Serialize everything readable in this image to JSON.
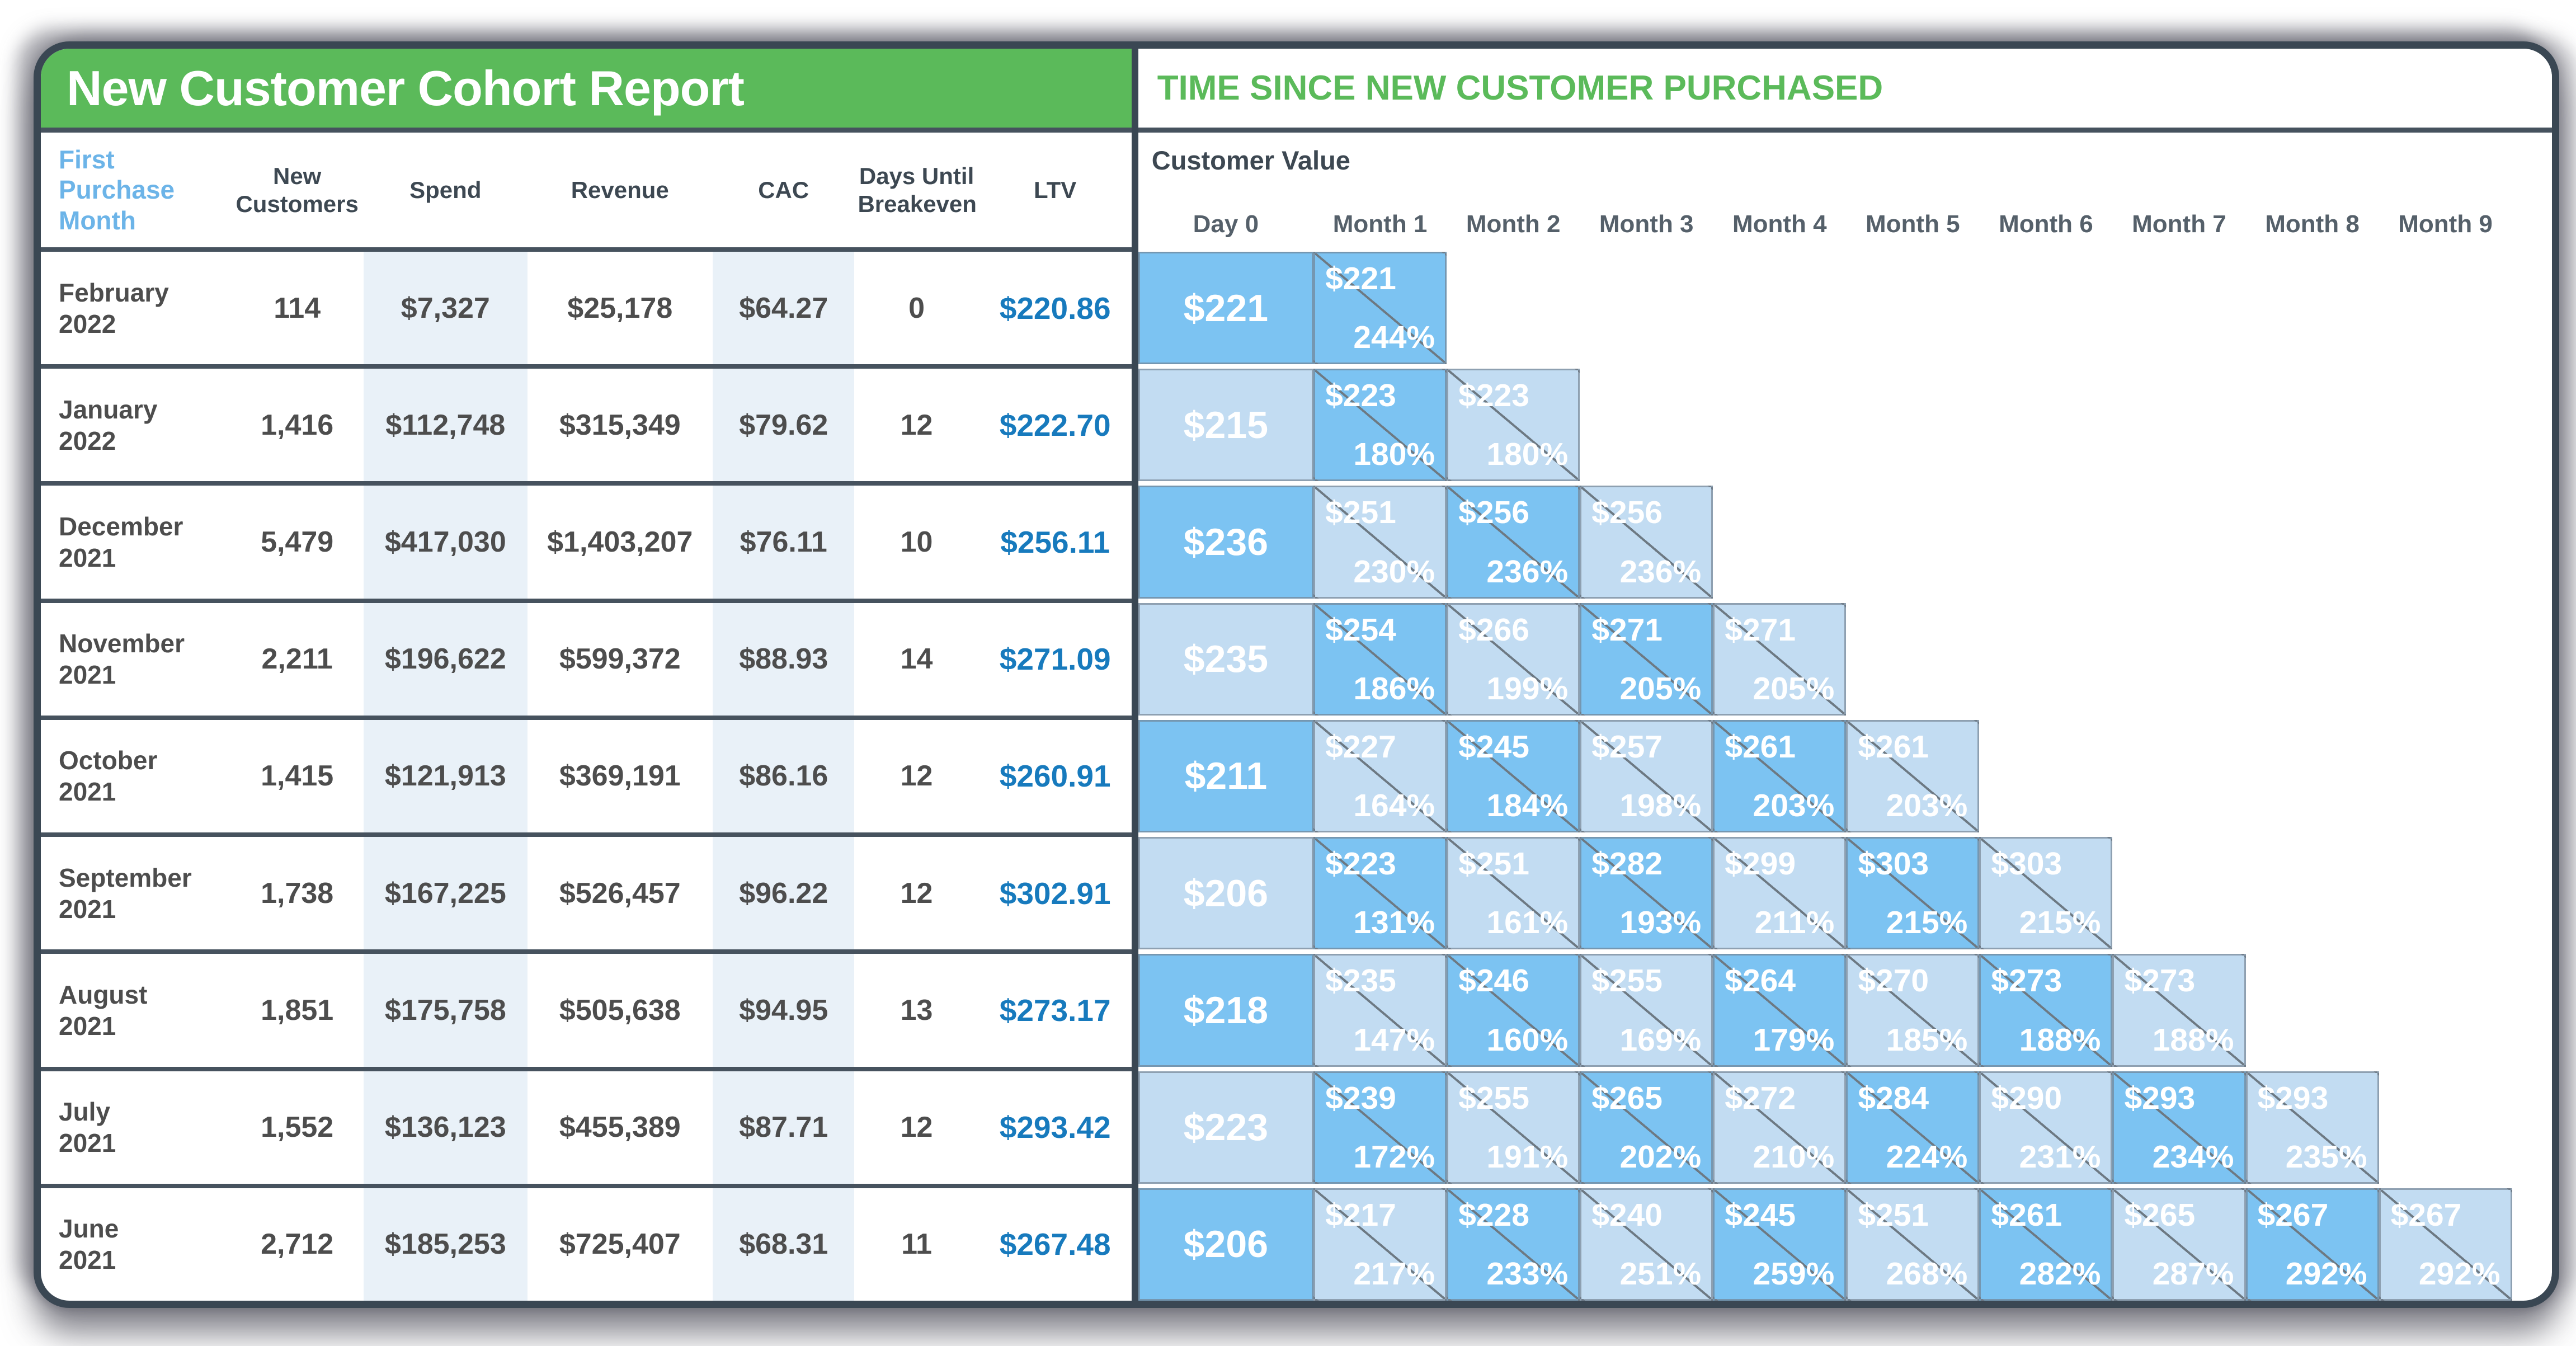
{
  "chart_data": {
    "type": "table",
    "left_table": {
      "title": "New Customer Cohort Report",
      "columns": [
        "First Purchase Month",
        "New Customers",
        "Spend",
        "Revenue",
        "CAC",
        "Days Until Breakeven",
        "LTV"
      ],
      "rows": [
        {
          "month": "February",
          "year": "2022",
          "new_customers": "114",
          "spend": "$7,327",
          "revenue": "$25,178",
          "cac": "$64.27",
          "days": "0",
          "ltv": "$220.86"
        },
        {
          "month": "January",
          "year": "2022",
          "new_customers": "1,416",
          "spend": "$112,748",
          "revenue": "$315,349",
          "cac": "$79.62",
          "days": "12",
          "ltv": "$222.70"
        },
        {
          "month": "December",
          "year": "2021",
          "new_customers": "5,479",
          "spend": "$417,030",
          "revenue": "$1,403,207",
          "cac": "$76.11",
          "days": "10",
          "ltv": "$256.11"
        },
        {
          "month": "November",
          "year": "2021",
          "new_customers": "2,211",
          "spend": "$196,622",
          "revenue": "$599,372",
          "cac": "$88.93",
          "days": "14",
          "ltv": "$271.09"
        },
        {
          "month": "October",
          "year": "2021",
          "new_customers": "1,415",
          "spend": "$121,913",
          "revenue": "$369,191",
          "cac": "$86.16",
          "days": "12",
          "ltv": "$260.91"
        },
        {
          "month": "September",
          "year": "2021",
          "new_customers": "1,738",
          "spend": "$167,225",
          "revenue": "$526,457",
          "cac": "$96.22",
          "days": "12",
          "ltv": "$302.91"
        },
        {
          "month": "August",
          "year": "2021",
          "new_customers": "1,851",
          "spend": "$175,758",
          "revenue": "$505,638",
          "cac": "$94.95",
          "days": "13",
          "ltv": "$273.17"
        },
        {
          "month": "July",
          "year": "2021",
          "new_customers": "1,552",
          "spend": "$136,123",
          "revenue": "$455,389",
          "cac": "$87.71",
          "days": "12",
          "ltv": "$293.42"
        },
        {
          "month": "June",
          "year": "2021",
          "new_customers": "2,712",
          "spend": "$185,253",
          "revenue": "$725,407",
          "cac": "$68.31",
          "days": "11",
          "ltv": "$267.48"
        }
      ]
    },
    "cohort_matrix": {
      "title": "TIME SINCE NEW CUSTOMER PURCHASED",
      "customer_value_label": "Customer Value",
      "columns": [
        "Day 0",
        "Month 1",
        "Month 2",
        "Month 3",
        "Month 4",
        "Month 5",
        "Month 6",
        "Month 7",
        "Month 8",
        "Month 9"
      ],
      "rows": [
        {
          "day0": {
            "value": "$221",
            "shade": "dark"
          },
          "cells": [
            {
              "value": "$221",
              "pct": "244%",
              "shade": "dark"
            }
          ]
        },
        {
          "day0": {
            "value": "$215",
            "shade": "light"
          },
          "cells": [
            {
              "value": "$223",
              "pct": "180%",
              "shade": "dark"
            },
            {
              "value": "$223",
              "pct": "180%",
              "shade": "light"
            }
          ]
        },
        {
          "day0": {
            "value": "$236",
            "shade": "dark"
          },
          "cells": [
            {
              "value": "$251",
              "pct": "230%",
              "shade": "light"
            },
            {
              "value": "$256",
              "pct": "236%",
              "shade": "dark"
            },
            {
              "value": "$256",
              "pct": "236%",
              "shade": "light"
            }
          ]
        },
        {
          "day0": {
            "value": "$235",
            "shade": "light"
          },
          "cells": [
            {
              "value": "$254",
              "pct": "186%",
              "shade": "dark"
            },
            {
              "value": "$266",
              "pct": "199%",
              "shade": "light"
            },
            {
              "value": "$271",
              "pct": "205%",
              "shade": "dark"
            },
            {
              "value": "$271",
              "pct": "205%",
              "shade": "light"
            }
          ]
        },
        {
          "day0": {
            "value": "$211",
            "shade": "dark"
          },
          "cells": [
            {
              "value": "$227",
              "pct": "164%",
              "shade": "light"
            },
            {
              "value": "$245",
              "pct": "184%",
              "shade": "dark"
            },
            {
              "value": "$257",
              "pct": "198%",
              "shade": "light"
            },
            {
              "value": "$261",
              "pct": "203%",
              "shade": "dark"
            },
            {
              "value": "$261",
              "pct": "203%",
              "shade": "light"
            }
          ]
        },
        {
          "day0": {
            "value": "$206",
            "shade": "light"
          },
          "cells": [
            {
              "value": "$223",
              "pct": "131%",
              "shade": "dark"
            },
            {
              "value": "$251",
              "pct": "161%",
              "shade": "light"
            },
            {
              "value": "$282",
              "pct": "193%",
              "shade": "dark"
            },
            {
              "value": "$299",
              "pct": "211%",
              "shade": "light"
            },
            {
              "value": "$303",
              "pct": "215%",
              "shade": "dark"
            },
            {
              "value": "$303",
              "pct": "215%",
              "shade": "light"
            }
          ]
        },
        {
          "day0": {
            "value": "$218",
            "shade": "dark"
          },
          "cells": [
            {
              "value": "$235",
              "pct": "147%",
              "shade": "light"
            },
            {
              "value": "$246",
              "pct": "160%",
              "shade": "dark"
            },
            {
              "value": "$255",
              "pct": "169%",
              "shade": "light"
            },
            {
              "value": "$264",
              "pct": "179%",
              "shade": "dark"
            },
            {
              "value": "$270",
              "pct": "185%",
              "shade": "light"
            },
            {
              "value": "$273",
              "pct": "188%",
              "shade": "dark"
            },
            {
              "value": "$273",
              "pct": "188%",
              "shade": "light"
            }
          ]
        },
        {
          "day0": {
            "value": "$223",
            "shade": "light"
          },
          "cells": [
            {
              "value": "$239",
              "pct": "172%",
              "shade": "dark"
            },
            {
              "value": "$255",
              "pct": "191%",
              "shade": "light"
            },
            {
              "value": "$265",
              "pct": "202%",
              "shade": "dark"
            },
            {
              "value": "$272",
              "pct": "210%",
              "shade": "light"
            },
            {
              "value": "$284",
              "pct": "224%",
              "shade": "dark"
            },
            {
              "value": "$290",
              "pct": "231%",
              "shade": "light"
            },
            {
              "value": "$293",
              "pct": "234%",
              "shade": "dark"
            },
            {
              "value": "$293",
              "pct": "235%",
              "shade": "light"
            }
          ]
        },
        {
          "day0": {
            "value": "$206",
            "shade": "dark"
          },
          "cells": [
            {
              "value": "$217",
              "pct": "217%",
              "shade": "light"
            },
            {
              "value": "$228",
              "pct": "233%",
              "shade": "dark"
            },
            {
              "value": "$240",
              "pct": "251%",
              "shade": "light"
            },
            {
              "value": "$245",
              "pct": "259%",
              "shade": "dark"
            },
            {
              "value": "$251",
              "pct": "268%",
              "shade": "light"
            },
            {
              "value": "$261",
              "pct": "282%",
              "shade": "dark"
            },
            {
              "value": "$265",
              "pct": "287%",
              "shade": "light"
            },
            {
              "value": "$267",
              "pct": "292%",
              "shade": "dark"
            },
            {
              "value": "$267",
              "pct": "292%",
              "shade": "light"
            }
          ]
        }
      ]
    },
    "colors": {
      "header_green": "#5bba5a",
      "panel_border": "#3a4753",
      "row_line": "#46525e",
      "cell_dark": "#7cc3f2",
      "cell_light": "#c2dcf2",
      "column_stripe": "#e9f1f8",
      "ltv_text": "#177abd",
      "first_purchase_header": "#6cb4e8",
      "body_text": "#4d4d4d",
      "cell_border": "#717f8d"
    }
  }
}
